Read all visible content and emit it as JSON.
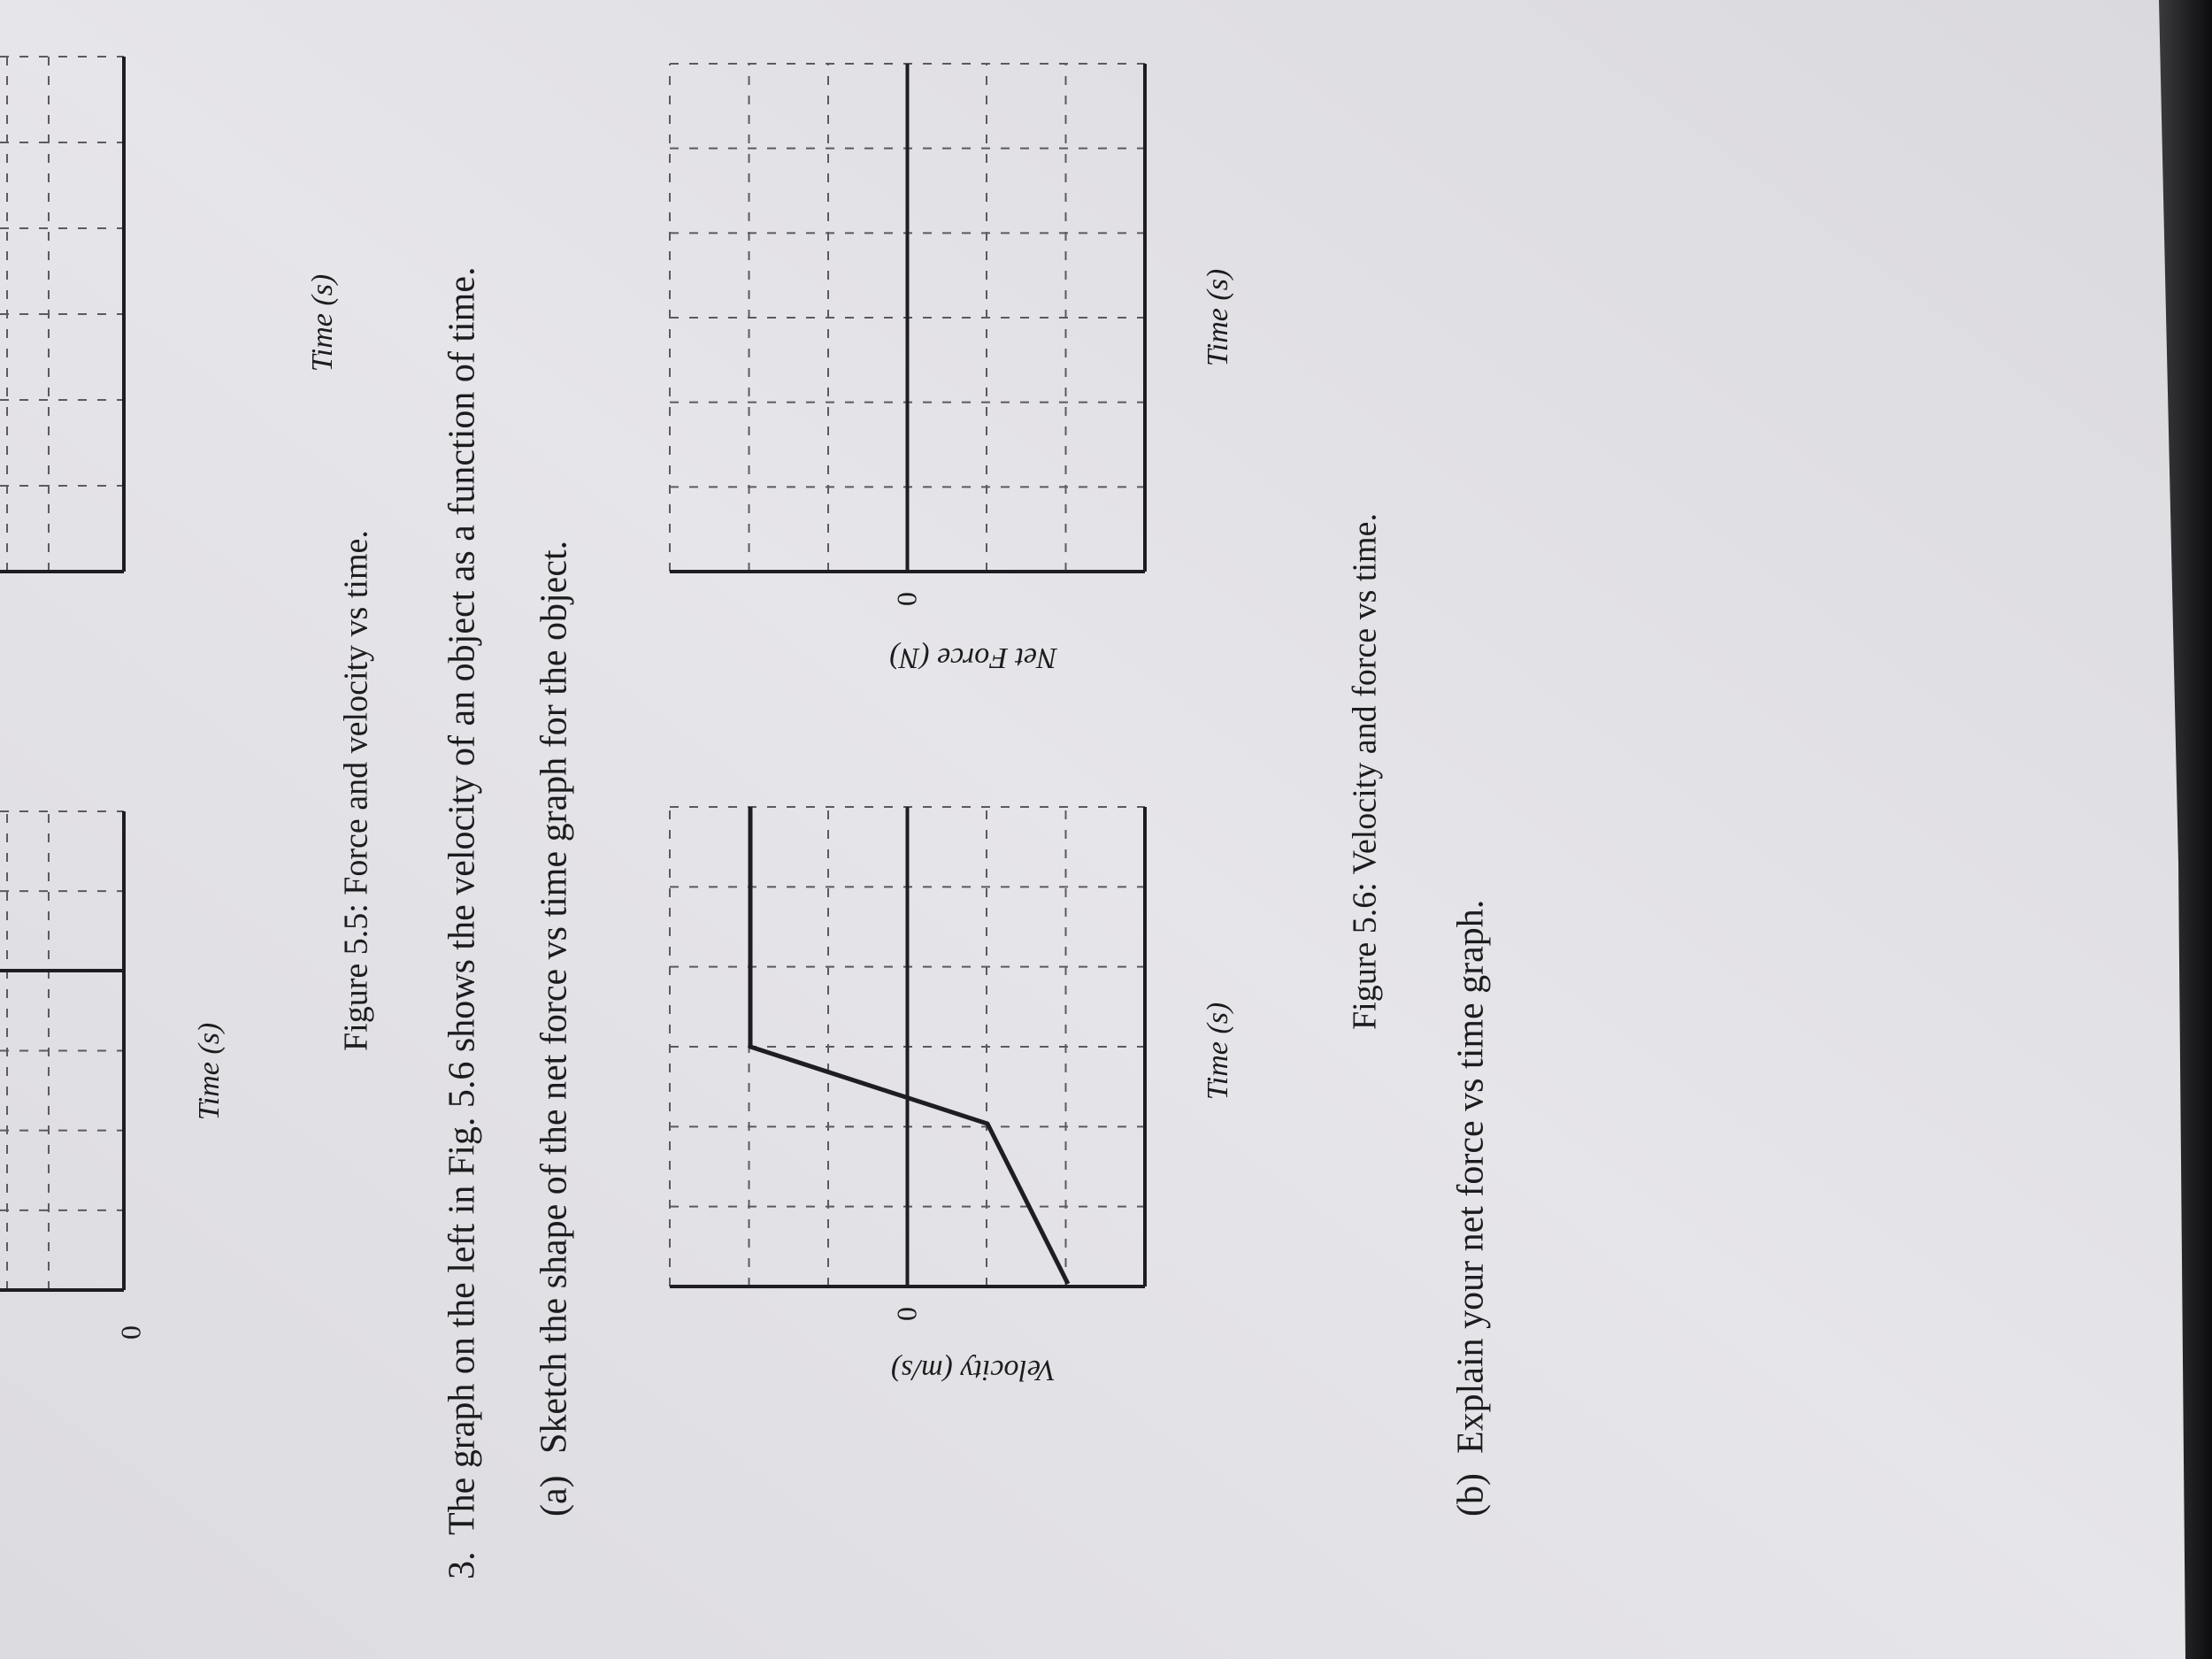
{
  "figure_5_5": {
    "graphs": [
      {
        "zero_label": "0",
        "x_label": "Time (s)"
      },
      {
        "x_label": "Time (s)"
      }
    ],
    "caption": "Figure 5.5: Force and velocity vs time."
  },
  "question": {
    "number": "3.",
    "text": "The graph on the left in Fig. 5.6 shows the velocity of an object as a function of time.",
    "part_a": {
      "label": "(a)",
      "text": "Sketch the shape of the net force vs time graph for the object."
    },
    "part_b": {
      "label": "(b)",
      "text": "Explain your net force vs time graph."
    }
  },
  "figure_5_6": {
    "graphs": [
      {
        "y_label": "Velocity (m/s)",
        "zero_label": "0",
        "x_label": "Time (s)"
      },
      {
        "y_label": "Net Force (N)",
        "zero_label": "0",
        "x_label": "Time (s)"
      }
    ],
    "caption": "Figure 5.6: Velocity and force vs time."
  }
}
